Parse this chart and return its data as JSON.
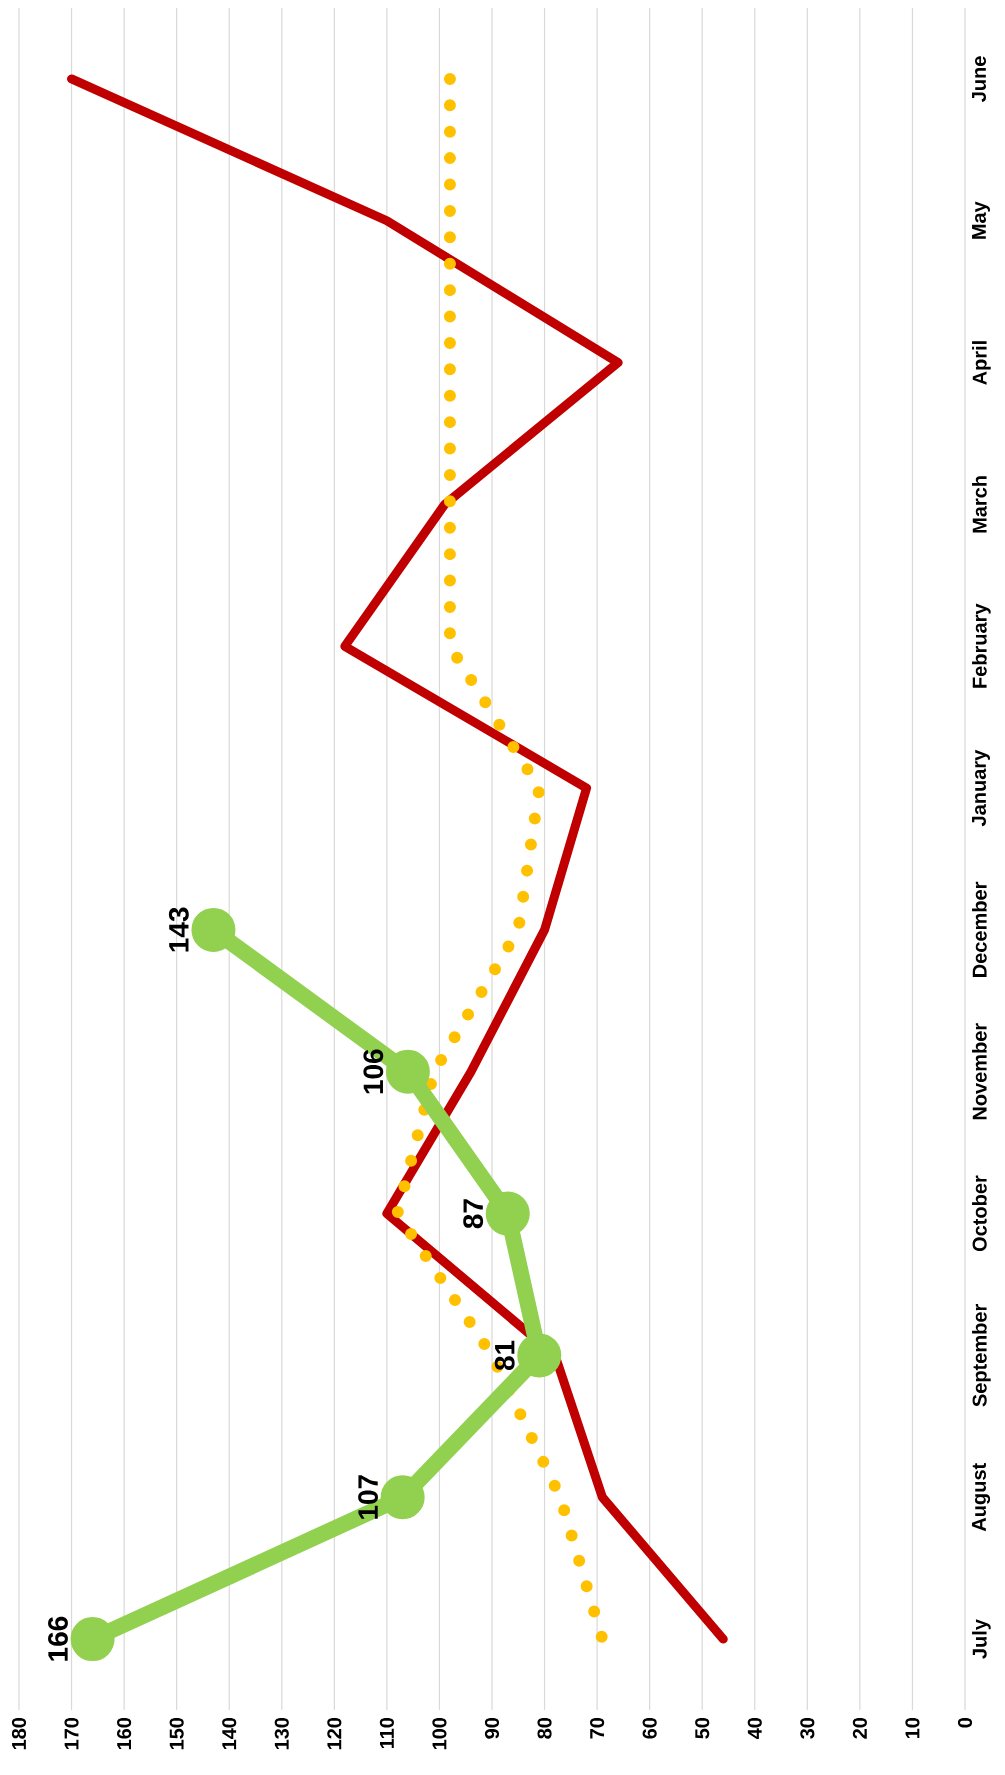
{
  "chart_data": {
    "type": "line",
    "orientation": "horizontal",
    "categories": [
      "June",
      "May",
      "April",
      "March",
      "February",
      "January",
      "December",
      "November",
      "October",
      "September",
      "August",
      "July"
    ],
    "xlim": [
      180,
      0
    ],
    "xticks": [
      0,
      10,
      20,
      30,
      40,
      50,
      60,
      70,
      80,
      90,
      100,
      110,
      120,
      130,
      140,
      150,
      160,
      170,
      180
    ],
    "grid": "x",
    "series": [
      {
        "color": "#c00000",
        "line_style": "solid",
        "marker": "none",
        "values": [
          170,
          110,
          66,
          99,
          118,
          72,
          80,
          94,
          110,
          78,
          69,
          46
        ]
      },
      {
        "color": "#ffc000",
        "line_style": "dotted",
        "marker": "none",
        "values": [
          98,
          98,
          98,
          98,
          98,
          81,
          85,
          101,
          108,
          90,
          77,
          69
        ]
      },
      {
        "color": "#92d050",
        "line_style": "solid",
        "marker": "circle",
        "data_labels": true,
        "values": [
          null,
          null,
          null,
          null,
          null,
          null,
          143,
          106,
          87,
          81,
          107,
          166
        ]
      }
    ]
  }
}
